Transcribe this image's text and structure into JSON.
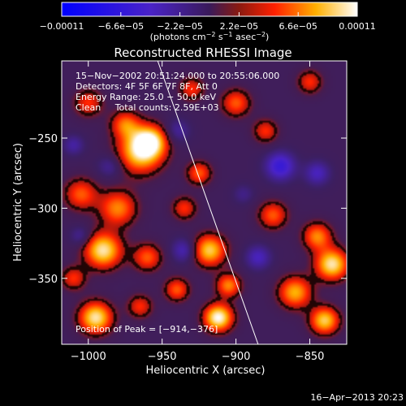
{
  "chart_data": {
    "type": "heatmap",
    "title": "Reconstructed RHESSI Image",
    "xlabel": "Heliocentric X (arcsec)",
    "ylabel": "Heliocentric Y (arcsec)",
    "xlim": [
      -1018,
      -825
    ],
    "ylim": [
      -397,
      -195
    ],
    "x_ticks": [
      -1000,
      -950,
      -900,
      -850
    ],
    "x_tick_labels": [
      "−1000",
      "−950",
      "−900",
      "−850"
    ],
    "y_ticks": [
      -250,
      -300,
      -350
    ],
    "y_tick_labels": [
      "−250",
      "−300",
      "−350"
    ],
    "colorbar": {
      "range": [
        -0.00011,
        0.00011
      ],
      "ticks": [
        -0.00011,
        -6.6e-05,
        -2.2e-05,
        2.2e-05,
        6.6e-05,
        0.00011
      ],
      "tick_labels": [
        "−0.00011",
        "−6.6e−05",
        "−2.2e−05",
        "2.2e−05",
        "6.6e−05",
        "0.00011"
      ],
      "unit_prefix": "(photons cm",
      "unit_exp1": "−2",
      "unit_mid": " s",
      "unit_exp2": "−1",
      "unit_mid2": " asec",
      "unit_exp3": "−2",
      "unit_suffix": ")"
    },
    "annotations": {
      "line1": "15−Nov−2002 20:51:24.000 to 20:55:06.000",
      "line2": "Detectors: 4F 5F 6F 7F 8F, Att 0",
      "line3": "Energy Range: 25.0 − 50.0 keV",
      "line4": "Clean     Total counts: 2.59E+03",
      "peak": "Position of Peak = [−914,−376]"
    },
    "peak_position": [
      -914,
      -376
    ],
    "limb_line": [
      [
        -953,
        -195
      ],
      [
        -885,
        -397
      ]
    ],
    "sources": [
      {
        "x": -965,
        "y": -260,
        "s": 11,
        "v": 9e-05
      },
      {
        "x": -958,
        "y": -252,
        "s": 8,
        "v": 8e-05
      },
      {
        "x": -975,
        "y": -240,
        "s": 7,
        "v": 6e-05
      },
      {
        "x": -1000,
        "y": -225,
        "s": 7,
        "v": 5e-05
      },
      {
        "x": -980,
        "y": -300,
        "s": 9,
        "v": 7e-05
      },
      {
        "x": -1005,
        "y": -290,
        "s": 8,
        "v": 6e-05
      },
      {
        "x": -990,
        "y": -330,
        "s": 9,
        "v": 0.0001
      },
      {
        "x": -960,
        "y": -335,
        "s": 7,
        "v": 6e-05
      },
      {
        "x": -995,
        "y": -378,
        "s": 8,
        "v": 0.0001
      },
      {
        "x": -965,
        "y": -370,
        "s": 6,
        "v": 5e-05
      },
      {
        "x": -940,
        "y": -358,
        "s": 6,
        "v": 6e-05
      },
      {
        "x": -935,
        "y": -300,
        "s": 6,
        "v": 5e-05
      },
      {
        "x": -925,
        "y": -275,
        "s": 6,
        "v": 6e-05
      },
      {
        "x": -918,
        "y": -330,
        "s": 8,
        "v": 9e-05
      },
      {
        "x": -912,
        "y": -378,
        "s": 7,
        "v": 0.00011
      },
      {
        "x": -905,
        "y": -355,
        "s": 6,
        "v": 7e-05
      },
      {
        "x": -900,
        "y": -225,
        "s": 7,
        "v": 6e-05
      },
      {
        "x": -880,
        "y": -245,
        "s": 6,
        "v": 5e-05
      },
      {
        "x": -875,
        "y": -305,
        "s": 7,
        "v": 6e-05
      },
      {
        "x": -860,
        "y": -360,
        "s": 8,
        "v": 8e-05
      },
      {
        "x": -845,
        "y": -320,
        "s": 7,
        "v": 7e-05
      },
      {
        "x": -835,
        "y": -340,
        "s": 8,
        "v": 0.0001
      },
      {
        "x": -840,
        "y": -380,
        "s": 7,
        "v": 9e-05
      },
      {
        "x": -850,
        "y": -210,
        "s": 6,
        "v": 5e-05
      },
      {
        "x": -930,
        "y": -215,
        "s": 6,
        "v": 5e-05
      },
      {
        "x": -1010,
        "y": -350,
        "s": 6,
        "v": 5e-05
      },
      {
        "x": -870,
        "y": -270,
        "s": 7,
        "v": -6e-05
      },
      {
        "x": -845,
        "y": -275,
        "s": 6,
        "v": -4e-05
      },
      {
        "x": -940,
        "y": -245,
        "s": 6,
        "v": -3e-05
      },
      {
        "x": -935,
        "y": -330,
        "s": 6,
        "v": -4e-05
      },
      {
        "x": -985,
        "y": -270,
        "s": 6,
        "v": -3e-05
      },
      {
        "x": -1005,
        "y": -320,
        "s": 5,
        "v": -3e-05
      },
      {
        "x": -885,
        "y": -335,
        "s": 6,
        "v": -4e-05
      },
      {
        "x": -1010,
        "y": -255,
        "s": 5,
        "v": -3e-05
      },
      {
        "x": -895,
        "y": -290,
        "s": 5,
        "v": -2e-05
      }
    ]
  },
  "footer": {
    "date": "16−Apr−2013 20:23"
  }
}
